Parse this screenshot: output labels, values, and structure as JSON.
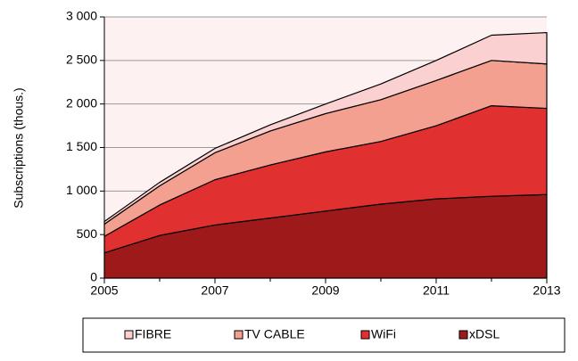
{
  "chart_data": {
    "type": "stacked_area",
    "y_label": "Subscriptions (thous.)",
    "x": [
      2005,
      2006,
      2007,
      2008,
      2009,
      2010,
      2011,
      2012,
      2013
    ],
    "xlim": [
      2005,
      2013
    ],
    "xticks": [
      2005,
      2007,
      2009,
      2011,
      2013
    ],
    "ylim": [
      0,
      3000
    ],
    "yticks": [
      0,
      500,
      {
        "value": 1000,
        "label": "1 000"
      },
      {
        "value": 1500,
        "label": "1 500"
      },
      {
        "value": 2000,
        "label": "2 000"
      },
      {
        "value": 2500,
        "label": "2 500"
      },
      {
        "value": 3000,
        "label": "3 000"
      }
    ],
    "grid": true,
    "legend": "bottom",
    "series": [
      {
        "name": "FIBRE",
        "color": "#fbd0d0",
        "values": [
          30,
          40,
          50,
          70,
          110,
          180,
          230,
          290,
          360
        ]
      },
      {
        "name": "TV CABLE",
        "color": "#f4a090",
        "values": [
          140,
          220,
          310,
          390,
          440,
          480,
          520,
          520,
          510
        ]
      },
      {
        "name": "WiFi",
        "color": "#e03030",
        "values": [
          190,
          350,
          520,
          610,
          680,
          720,
          840,
          1040,
          990
        ]
      },
      {
        "name": "xDSL",
        "color": "#9e1a1a",
        "values": [
          290,
          490,
          610,
          690,
          770,
          850,
          910,
          940,
          960
        ]
      }
    ]
  }
}
